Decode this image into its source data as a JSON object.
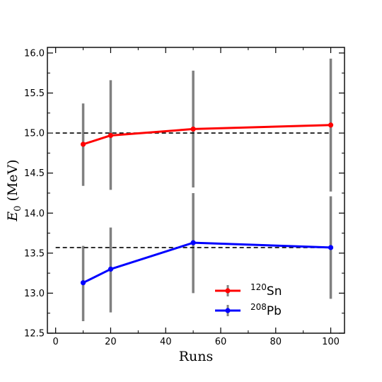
{
  "chart_data": {
    "type": "line",
    "title": "",
    "xlabel": "Runs",
    "ylabel": "E",
    "ylabel_sub": "0",
    "ylabel_unit": " (MeV)",
    "xlim": [
      -3,
      105
    ],
    "ylim": [
      12.5,
      16.07
    ],
    "xticks": [
      0,
      20,
      40,
      60,
      80,
      100
    ],
    "yticks": [
      "12.5",
      "13.0",
      "13.5",
      "14.0",
      "14.5",
      "15.0",
      "15.5",
      "16.0"
    ],
    "grid": false,
    "legend_position": "bottom-right",
    "x": [
      10,
      20,
      50,
      100
    ],
    "series": [
      {
        "name_sup": "120",
        "name_base": "Sn",
        "color": "#ff0000",
        "values": [
          14.86,
          14.97,
          15.05,
          15.1
        ],
        "err_low": [
          14.34,
          14.29,
          14.32,
          14.27
        ],
        "err_high": [
          15.37,
          15.66,
          15.78,
          15.93
        ],
        "reference": 15.0
      },
      {
        "name_sup": "208",
        "name_base": "Pb",
        "color": "#0000ff",
        "values": [
          13.13,
          13.3,
          13.63,
          13.57
        ],
        "err_low": [
          12.65,
          12.76,
          13.0,
          12.93
        ],
        "err_high": [
          13.59,
          13.82,
          14.25,
          14.21
        ],
        "reference": 13.57
      }
    ],
    "errorbar_color": "#808080",
    "reference_color": "#000000"
  }
}
